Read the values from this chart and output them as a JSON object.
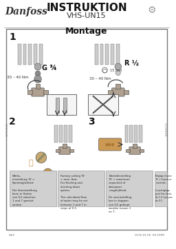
{
  "bg_color": "#ffffff",
  "border_color": "#cccccc",
  "title_main": "INSTRUKTION",
  "title_sub": "VHS-UN15",
  "section_title": "Montage",
  "step1_label": "1",
  "step2_label": "2",
  "step3_label": "3",
  "g_label": "G ¾",
  "r_label": "R ½",
  "footer_left": "04/2",
  "footer_right": "VL55.01.00  09-1999",
  "main_border_color": "#888888",
  "light_gray": "#e8e8e8",
  "mid_gray": "#aaaaaa",
  "dark_gray": "#555555",
  "text_box_color": "#d0d0d0"
}
